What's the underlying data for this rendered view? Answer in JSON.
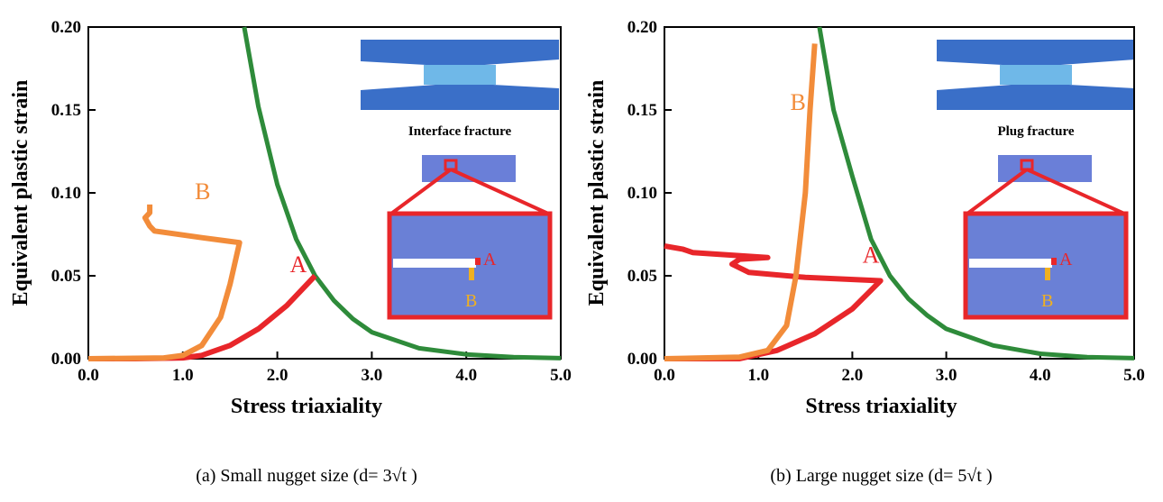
{
  "chart_data": [
    {
      "type": "line",
      "x_label": "Stress triaxiality",
      "y_label": "Equivalent plastic strain",
      "caption": "(a) Small nugget size (d= 3√t )",
      "inset_title": "Interface fracture",
      "xlim": [
        0,
        5
      ],
      "ylim": [
        0,
        0.2
      ],
      "xticks": [
        {
          "value": 0,
          "label": "0.0"
        },
        {
          "value": 1,
          "label": "1.0"
        },
        {
          "value": 2,
          "label": "2.0"
        },
        {
          "value": 3,
          "label": "3.0"
        },
        {
          "value": 4,
          "label": "4.0"
        },
        {
          "value": 5,
          "label": "5.0"
        }
      ],
      "yticks": [
        {
          "value": 0,
          "label": "0.00"
        },
        {
          "value": 0.05,
          "label": "0.05"
        },
        {
          "value": 0.1,
          "label": "0.10"
        },
        {
          "value": 0.15,
          "label": "0.15"
        },
        {
          "value": 0.2,
          "label": "0.20"
        }
      ],
      "series": [
        {
          "color": "#2e8b3a",
          "x": [
            1.65,
            1.8,
            2.0,
            2.2,
            2.4,
            2.6,
            2.8,
            3.0,
            3.5,
            4.0,
            4.5,
            5.0
          ],
          "values": [
            0.2,
            0.152,
            0.105,
            0.072,
            0.05,
            0.035,
            0.024,
            0.016,
            0.0063,
            0.0026,
            0.001,
            0.0003
          ]
        },
        {
          "name": "A",
          "color": "#e8262a",
          "x": [
            0,
            0.5,
            1.0,
            1.2,
            1.5,
            1.8,
            2.1,
            2.4
          ],
          "values": [
            0,
            0,
            0.0005,
            0.002,
            0.008,
            0.018,
            0.032,
            0.05
          ]
        },
        {
          "name": "B",
          "color": "#f28c3a",
          "x": [
            0,
            0.8,
            1.0,
            1.2,
            1.4,
            1.5,
            1.6,
            1.2,
            0.7,
            0.65,
            0.6,
            0.65,
            0.65
          ],
          "values": [
            0,
            0.0005,
            0.002,
            0.008,
            0.025,
            0.045,
            0.07,
            0.073,
            0.077,
            0.08,
            0.085,
            0.088,
            0.093
          ]
        }
      ]
    },
    {
      "type": "line",
      "x_label": "Stress triaxiality",
      "y_label": "Equivalent plastic strain",
      "caption": "(b) Large nugget size (d= 5√t )",
      "inset_title": "Plug fracture",
      "xlim": [
        0,
        5
      ],
      "ylim": [
        0,
        0.2
      ],
      "xticks": [
        {
          "value": 0,
          "label": "0.0"
        },
        {
          "value": 1,
          "label": "1.0"
        },
        {
          "value": 2,
          "label": "2.0"
        },
        {
          "value": 3,
          "label": "3.0"
        },
        {
          "value": 4,
          "label": "4.0"
        },
        {
          "value": 5,
          "label": "5.0"
        }
      ],
      "yticks": [
        {
          "value": 0,
          "label": "0.00"
        },
        {
          "value": 0.05,
          "label": "0.05"
        },
        {
          "value": 0.1,
          "label": "0.10"
        },
        {
          "value": 0.15,
          "label": "0.15"
        },
        {
          "value": 0.2,
          "label": "0.20"
        }
      ],
      "series": [
        {
          "color": "#2e8b3a",
          "x": [
            1.65,
            1.8,
            2.0,
            2.2,
            2.4,
            2.6,
            2.8,
            3.0,
            3.5,
            4.0,
            4.5,
            5.0
          ],
          "values": [
            0.2,
            0.15,
            0.11,
            0.072,
            0.05,
            0.036,
            0.026,
            0.018,
            0.008,
            0.003,
            0.001,
            0.0003
          ]
        },
        {
          "name": "A",
          "color": "#e8262a",
          "x": [
            0,
            0.8,
            1.2,
            1.6,
            2.0,
            2.3,
            1.5,
            0.9,
            0.72,
            0.8,
            1.1,
            0.3,
            0.2,
            0
          ],
          "values": [
            0,
            0,
            0.005,
            0.015,
            0.03,
            0.047,
            0.049,
            0.052,
            0.057,
            0.06,
            0.061,
            0.064,
            0.066,
            0.068
          ]
        },
        {
          "name": "B",
          "color": "#f28c3a",
          "x": [
            0,
            0.8,
            1.1,
            1.3,
            1.4,
            1.5,
            1.55,
            1.6
          ],
          "values": [
            0,
            0.001,
            0.005,
            0.02,
            0.05,
            0.1,
            0.15,
            0.19
          ]
        }
      ]
    }
  ]
}
